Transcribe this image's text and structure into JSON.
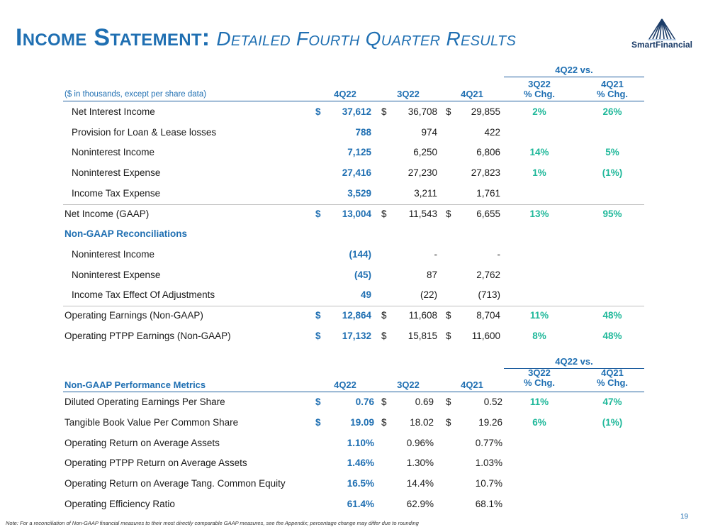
{
  "title": {
    "main": "Income Statement:",
    "sub": "Detailed Fourth Quarter Results"
  },
  "logo": {
    "name": "SmartFinancial"
  },
  "colors": {
    "blue": "#1f6fb2",
    "green": "#1fb89a",
    "navy": "#1b3c68"
  },
  "table1": {
    "group_header": "4Q22 vs.",
    "caption": "($ in thousands, except per share data)",
    "col_q1": "4Q22",
    "col_q2": "3Q22",
    "col_q3": "4Q21",
    "chg1_l1": "3Q22",
    "chg1_l2": "% Chg.",
    "chg2_l1": "4Q21",
    "chg2_l2": "% Chg.",
    "rows": [
      {
        "label": "Net Interest Income",
        "d1": "$",
        "v1": "37,612",
        "d2": "$",
        "v2": "36,708",
        "d3": "$",
        "v3": "29,855",
        "c1": "2%",
        "c2": "26%"
      },
      {
        "label": "Provision for Loan & Lease losses",
        "v1": "788",
        "v2": "974",
        "v3": "422"
      },
      {
        "label": "Noninterest Income",
        "v1": "7,125",
        "v2": "6,250",
        "v3": "6,806",
        "c1": "14%",
        "c2": "5%"
      },
      {
        "label": "Noninterest Expense",
        "v1": "27,416",
        "v2": "27,230",
        "v3": "27,823",
        "c1": "1%",
        "c2": "(1%)"
      },
      {
        "label": "Income Tax Expense",
        "v1": "3,529",
        "v2": "3,211",
        "v3": "1,761"
      },
      {
        "label": "Net Income (GAAP)",
        "d1": "$",
        "v1": "13,004",
        "d2": "$",
        "v2": "11,543",
        "d3": "$",
        "v3": "6,655",
        "c1": "13%",
        "c2": "95%"
      },
      {
        "label": "Non-GAAP Reconciliations"
      },
      {
        "label": "Noninterest Income",
        "v1": "(144)",
        "v2": "-",
        "v3": "-"
      },
      {
        "label": "Noninterest Expense",
        "v1": "(45)",
        "v2": "87",
        "v3": "2,762"
      },
      {
        "label": "Income Tax Effect Of Adjustments",
        "v1": "49",
        "v2": "(22)",
        "v3": "(713)"
      },
      {
        "label": "Operating Earnings (Non-GAAP)",
        "d1": "$",
        "v1": "12,864",
        "d2": "$",
        "v2": "11,608",
        "d3": "$",
        "v3": "8,704",
        "c1": "11%",
        "c2": "48%"
      },
      {
        "label": "Operating PTPP Earnings (Non-GAAP)",
        "d1": "$",
        "v1": "17,132",
        "d2": "$",
        "v2": "15,815",
        "d3": "$",
        "v3": "11,600",
        "c1": "8%",
        "c2": "48%"
      }
    ]
  },
  "table2": {
    "group_header": "4Q22 vs.",
    "caption": "Non-GAAP Performance Metrics",
    "col_q1": "4Q22",
    "col_q2": "3Q22",
    "col_q3": "4Q21",
    "chg1_l1": "3Q22",
    "chg1_l2": "% Chg.",
    "chg2_l1": "4Q21",
    "chg2_l2": "% Chg.",
    "rows": [
      {
        "label": "Diluted Operating Earnings Per Share",
        "d1": "$",
        "v1": "0.76",
        "d2": "$",
        "v2": "0.69",
        "d3": "$",
        "v3": "0.52",
        "c1": "11%",
        "c2": "47%"
      },
      {
        "label": "Tangible Book Value Per Common Share",
        "d1": "$",
        "v1": "19.09",
        "d2": "$",
        "v2": "18.02",
        "d3": "$",
        "v3": "19.26",
        "c1": "6%",
        "c2": "(1%)"
      },
      {
        "label": "Operating Return on Average Assets",
        "v1": "1.10%",
        "v2": "0.96%",
        "v3": "0.77%"
      },
      {
        "label": "Operating PTPP Return on Average Assets",
        "v1": "1.46%",
        "v2": "1.30%",
        "v3": "1.03%"
      },
      {
        "label": "Operating Return on Average Tang. Common Equity",
        "v1": "16.5%",
        "v2": "14.4%",
        "v3": "10.7%"
      },
      {
        "label": "Operating Efficiency Ratio",
        "v1": "61.4%",
        "v2": "62.9%",
        "v3": "68.1%"
      }
    ]
  },
  "footnote": "Note: For a reconciliation of Non-GAAP financial measures to their most directly comparable GAAP measures, see the Appendix; percentage change may differ due to rounding",
  "page_number": "19"
}
